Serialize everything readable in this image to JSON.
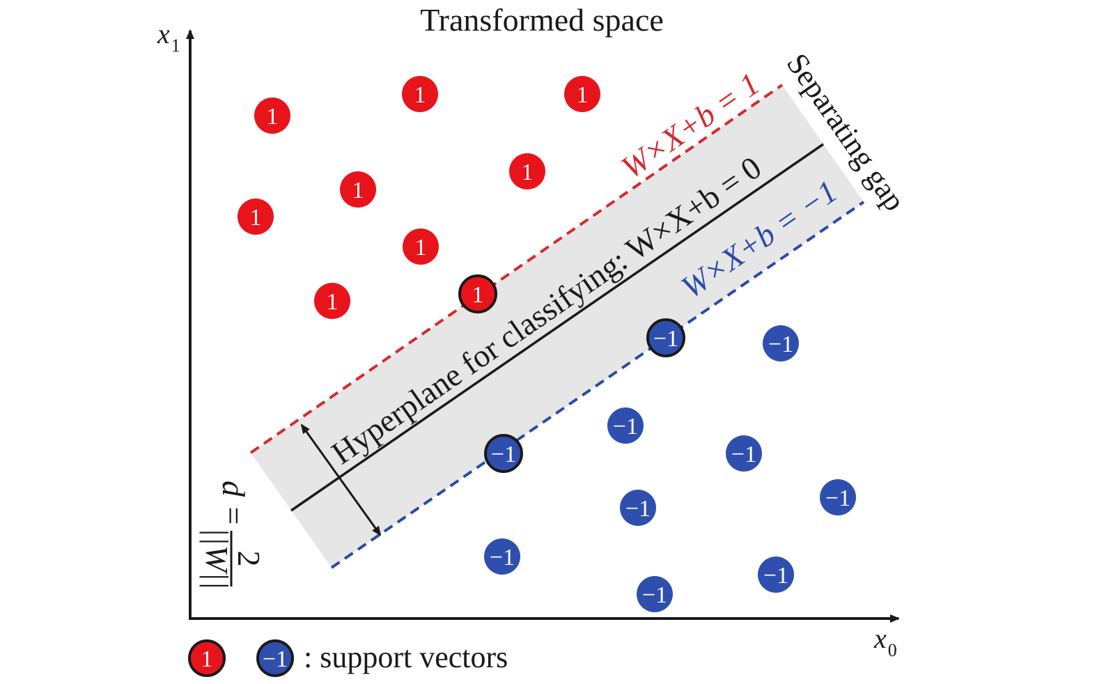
{
  "title": "Transformed space",
  "axes": {
    "x_label": "x",
    "x_sub": "0",
    "y_label": "x",
    "y_sub": "1"
  },
  "labels": {
    "positive_class": "1",
    "negative_class": "−1",
    "upper_margin_eq": "W×X+b = 1",
    "hyperplane_eq": "Hyperplane for classifying: W×X+b = 0",
    "lower_margin_eq": "W×X+b = −1",
    "gap_label": "Separating gap",
    "distance_lhs": "d =",
    "distance_num": "2",
    "distance_den": "||W||",
    "legend_text": ": support vectors"
  },
  "colors": {
    "positive": "#e8141c",
    "negative": "#2f4fae",
    "margin_band": "#e6e6e6",
    "upper_line": "#d42a2f",
    "lower_line": "#2a4aa8",
    "hyperplane": "#1a1a1a"
  }
}
